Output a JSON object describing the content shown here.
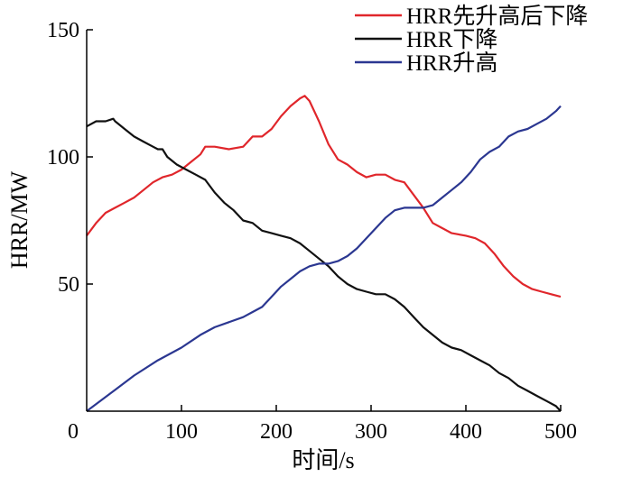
{
  "chart_data": {
    "type": "line",
    "title": "",
    "xlabel": "时间/s",
    "ylabel": "HRR/MW",
    "xlim": [
      0,
      500
    ],
    "ylim": [
      0,
      150
    ],
    "x_ticks": [
      0,
      100,
      200,
      300,
      400,
      500
    ],
    "y_ticks": [
      50,
      100,
      150
    ],
    "x_tick_labels": [
      "0",
      "100",
      "200",
      "300",
      "400",
      "500"
    ],
    "y_tick_labels": [
      "50",
      "100",
      "150"
    ],
    "grid": false,
    "legend_position": "top-right",
    "series": [
      {
        "name": "HRR先升高后下降",
        "color": "#e0262b",
        "points": [
          [
            0,
            69
          ],
          [
            10,
            74
          ],
          [
            20,
            78
          ],
          [
            30,
            80
          ],
          [
            40,
            82
          ],
          [
            50,
            84
          ],
          [
            60,
            87
          ],
          [
            70,
            90
          ],
          [
            80,
            92
          ],
          [
            90,
            93
          ],
          [
            100,
            95
          ],
          [
            110,
            98
          ],
          [
            120,
            101
          ],
          [
            125,
            104
          ],
          [
            135,
            104
          ],
          [
            150,
            103
          ],
          [
            165,
            104
          ],
          [
            175,
            108
          ],
          [
            185,
            108
          ],
          [
            195,
            111
          ],
          [
            205,
            116
          ],
          [
            215,
            120
          ],
          [
            225,
            123
          ],
          [
            230,
            124
          ],
          [
            235,
            122
          ],
          [
            245,
            114
          ],
          [
            255,
            105
          ],
          [
            265,
            99
          ],
          [
            275,
            97
          ],
          [
            285,
            94
          ],
          [
            295,
            92
          ],
          [
            305,
            93
          ],
          [
            315,
            93
          ],
          [
            325,
            91
          ],
          [
            335,
            90
          ],
          [
            345,
            85
          ],
          [
            355,
            80
          ],
          [
            365,
            74
          ],
          [
            375,
            72
          ],
          [
            385,
            70
          ],
          [
            400,
            69
          ],
          [
            410,
            68
          ],
          [
            420,
            66
          ],
          [
            430,
            62
          ],
          [
            440,
            57
          ],
          [
            450,
            53
          ],
          [
            460,
            50
          ],
          [
            470,
            48
          ],
          [
            480,
            47
          ],
          [
            490,
            46
          ],
          [
            500,
            45
          ]
        ]
      },
      {
        "name": "HRR下降",
        "color": "#111111",
        "points": [
          [
            0,
            112
          ],
          [
            10,
            114
          ],
          [
            20,
            114
          ],
          [
            28,
            115
          ],
          [
            30,
            114
          ],
          [
            40,
            111
          ],
          [
            50,
            108
          ],
          [
            60,
            106
          ],
          [
            70,
            104
          ],
          [
            75,
            103
          ],
          [
            80,
            103
          ],
          [
            85,
            100
          ],
          [
            95,
            97
          ],
          [
            105,
            95
          ],
          [
            115,
            93
          ],
          [
            125,
            91
          ],
          [
            135,
            86
          ],
          [
            145,
            82
          ],
          [
            155,
            79
          ],
          [
            165,
            75
          ],
          [
            175,
            74
          ],
          [
            185,
            71
          ],
          [
            195,
            70
          ],
          [
            205,
            69
          ],
          [
            215,
            68
          ],
          [
            225,
            66
          ],
          [
            235,
            63
          ],
          [
            245,
            60
          ],
          [
            255,
            57
          ],
          [
            265,
            53
          ],
          [
            275,
            50
          ],
          [
            285,
            48
          ],
          [
            295,
            47
          ],
          [
            305,
            46
          ],
          [
            315,
            46
          ],
          [
            325,
            44
          ],
          [
            335,
            41
          ],
          [
            345,
            37
          ],
          [
            355,
            33
          ],
          [
            365,
            30
          ],
          [
            375,
            27
          ],
          [
            385,
            25
          ],
          [
            395,
            24
          ],
          [
            405,
            22
          ],
          [
            415,
            20
          ],
          [
            425,
            18
          ],
          [
            435,
            15
          ],
          [
            445,
            13
          ],
          [
            455,
            10
          ],
          [
            465,
            8
          ],
          [
            475,
            6
          ],
          [
            485,
            4
          ],
          [
            495,
            2
          ],
          [
            500,
            0
          ]
        ]
      },
      {
        "name": "HRR升高",
        "color": "#2b3791",
        "points": [
          [
            0,
            0
          ],
          [
            25,
            7
          ],
          [
            50,
            14
          ],
          [
            75,
            20
          ],
          [
            100,
            25
          ],
          [
            120,
            30
          ],
          [
            135,
            33
          ],
          [
            150,
            35
          ],
          [
            165,
            37
          ],
          [
            175,
            39
          ],
          [
            185,
            41
          ],
          [
            195,
            45
          ],
          [
            205,
            49
          ],
          [
            215,
            52
          ],
          [
            225,
            55
          ],
          [
            235,
            57
          ],
          [
            245,
            58
          ],
          [
            255,
            58
          ],
          [
            265,
            59
          ],
          [
            275,
            61
          ],
          [
            285,
            64
          ],
          [
            295,
            68
          ],
          [
            305,
            72
          ],
          [
            315,
            76
          ],
          [
            325,
            79
          ],
          [
            335,
            80
          ],
          [
            345,
            80
          ],
          [
            355,
            80
          ],
          [
            365,
            81
          ],
          [
            375,
            84
          ],
          [
            385,
            87
          ],
          [
            395,
            90
          ],
          [
            405,
            94
          ],
          [
            415,
            99
          ],
          [
            425,
            102
          ],
          [
            435,
            104
          ],
          [
            445,
            108
          ],
          [
            455,
            110
          ],
          [
            465,
            111
          ],
          [
            475,
            113
          ],
          [
            485,
            115
          ],
          [
            495,
            118
          ],
          [
            500,
            120
          ]
        ]
      }
    ]
  }
}
